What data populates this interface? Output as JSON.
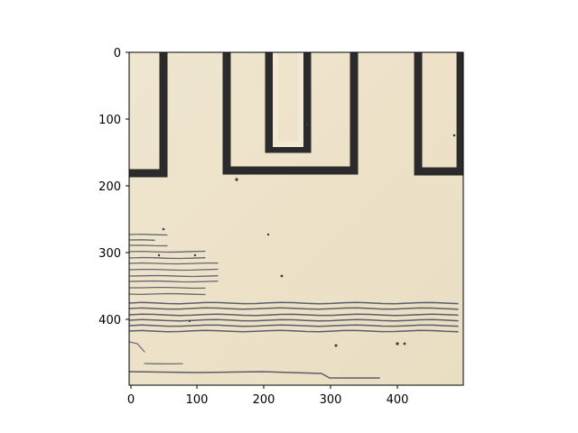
{
  "image_axes": {
    "x_ticks": [
      "0",
      "100",
      "200",
      "300",
      "400"
    ],
    "y_ticks": [
      "0",
      "100",
      "200",
      "300",
      "400"
    ],
    "colors": {
      "paper": "#ede3cc",
      "ink": "#2b2b2b",
      "hatch": "#4a5060",
      "axis": "#000000"
    }
  }
}
